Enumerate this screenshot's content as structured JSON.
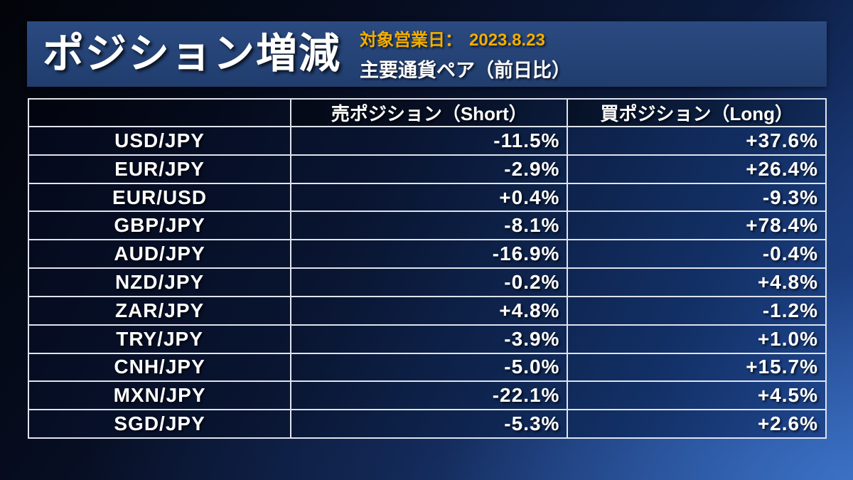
{
  "header": {
    "title": "ポジション増減",
    "date_label": "対象営業日：",
    "date_value": "2023.8.23",
    "subtitle": "主要通貨ペア（前日比）"
  },
  "table": {
    "columns": [
      "",
      "売ポジション（Short）",
      "買ポジション（Long）"
    ],
    "rows": [
      {
        "pair": "USD/JPY",
        "short": "-11.5%",
        "long": "+37.6%"
      },
      {
        "pair": "EUR/JPY",
        "short": "-2.9%",
        "long": "+26.4%"
      },
      {
        "pair": "EUR/USD",
        "short": "+0.4%",
        "long": "-9.3%"
      },
      {
        "pair": "GBP/JPY",
        "short": "-8.1%",
        "long": "+78.4%"
      },
      {
        "pair": "AUD/JPY",
        "short": "-16.9%",
        "long": "-0.4%"
      },
      {
        "pair": "NZD/JPY",
        "short": "-0.2%",
        "long": "+4.8%"
      },
      {
        "pair": "ZAR/JPY",
        "short": "+4.8%",
        "long": "-1.2%"
      },
      {
        "pair": "TRY/JPY",
        "short": "-3.9%",
        "long": "+1.0%"
      },
      {
        "pair": "CNH/JPY",
        "short": "-5.0%",
        "long": "+15.7%"
      },
      {
        "pair": "MXN/JPY",
        "short": "-22.1%",
        "long": "+4.5%"
      },
      {
        "pair": "SGD/JPY",
        "short": "-5.3%",
        "long": "+2.6%"
      }
    ]
  },
  "colors": {
    "accent_gold": "#f2ae00",
    "banner_navy": "#254376",
    "background_blue": "#2e5fb2",
    "border_white": "#dfe4ee"
  }
}
